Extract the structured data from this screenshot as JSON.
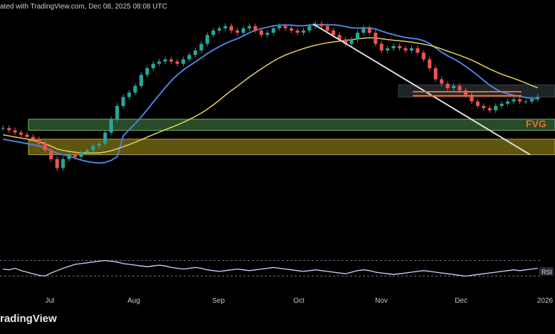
{
  "header": {
    "published_text": "ated with TradingView.com, Dec 08, 2025 08:08 UTC"
  },
  "footer": {
    "brand_text": "radingView"
  },
  "colors": {
    "background": "#000000",
    "candle_up": "#26a69a",
    "candle_down": "#ef5350",
    "ma_fast": "#4f7fe0",
    "ma_slow": "#e6d25a",
    "trendline": "#e0e0e0",
    "fvg": "#f26b2d",
    "green_zone": "#2e5a2e",
    "yellow_zone": "#6f6414",
    "gray_zone": "#283036",
    "rsi_line": "#cfd8ff"
  },
  "chart_data": {
    "type": "candlestick",
    "title": "",
    "xlabel": "",
    "ylabel": "",
    "x_ticks": [
      "Jul",
      "Aug",
      "Sep",
      "Oct",
      "Nov",
      "Dec",
      "2026"
    ],
    "annotations": [
      {
        "text": "FVG",
        "kind": "label"
      },
      {
        "text": "RSI",
        "kind": "pane-label"
      }
    ],
    "series_closes_normalized": [
      0.48,
      0.47,
      0.46,
      0.45,
      0.44,
      0.43,
      0.41,
      0.38,
      0.34,
      0.3,
      0.34,
      0.36,
      0.35,
      0.37,
      0.38,
      0.4,
      0.41,
      0.46,
      0.52,
      0.58,
      0.62,
      0.64,
      0.67,
      0.72,
      0.75,
      0.77,
      0.78,
      0.79,
      0.78,
      0.77,
      0.79,
      0.81,
      0.83,
      0.86,
      0.9,
      0.92,
      0.93,
      0.94,
      0.92,
      0.91,
      0.93,
      0.94,
      0.92,
      0.9,
      0.91,
      0.93,
      0.94,
      0.93,
      0.92,
      0.91,
      0.92,
      0.94,
      0.95,
      0.94,
      0.92,
      0.9,
      0.88,
      0.86,
      0.88,
      0.91,
      0.93,
      0.91,
      0.86,
      0.83,
      0.84,
      0.85,
      0.84,
      0.83,
      0.84,
      0.82,
      0.79,
      0.75,
      0.7,
      0.68,
      0.66,
      0.67,
      0.65,
      0.63,
      0.6,
      0.58,
      0.57,
      0.56,
      0.58,
      0.59,
      0.6,
      0.61,
      0.6,
      0.6,
      0.61,
      0.62
    ],
    "zones": [
      {
        "name": "gray",
        "top": 0.675,
        "bottom": 0.62
      },
      {
        "name": "green",
        "top": 0.52,
        "bottom": 0.47
      },
      {
        "name": "yellow",
        "top": 0.43,
        "bottom": 0.36
      }
    ],
    "fvg_levels": [
      0.644,
      0.626
    ],
    "rsi_values": [
      48,
      46,
      50,
      44,
      40,
      36,
      32,
      30,
      38,
      44,
      50,
      55,
      60,
      62,
      64,
      66,
      68,
      70,
      68,
      66,
      62,
      60,
      58,
      56,
      54,
      56,
      58,
      56,
      52,
      50,
      48,
      50,
      52,
      50,
      46,
      44,
      42,
      44,
      46,
      48,
      46,
      44,
      46,
      48,
      50,
      52,
      50,
      48,
      46,
      44,
      42,
      44,
      46,
      44,
      42,
      40,
      38,
      36,
      40,
      44,
      46,
      44,
      40,
      38,
      36,
      34,
      36,
      38,
      40,
      42,
      44,
      42,
      40,
      38,
      36,
      34,
      32,
      30,
      32,
      34,
      36,
      38,
      40,
      42,
      44,
      46,
      44,
      46,
      48,
      50
    ],
    "grid": false,
    "legend": "none"
  }
}
